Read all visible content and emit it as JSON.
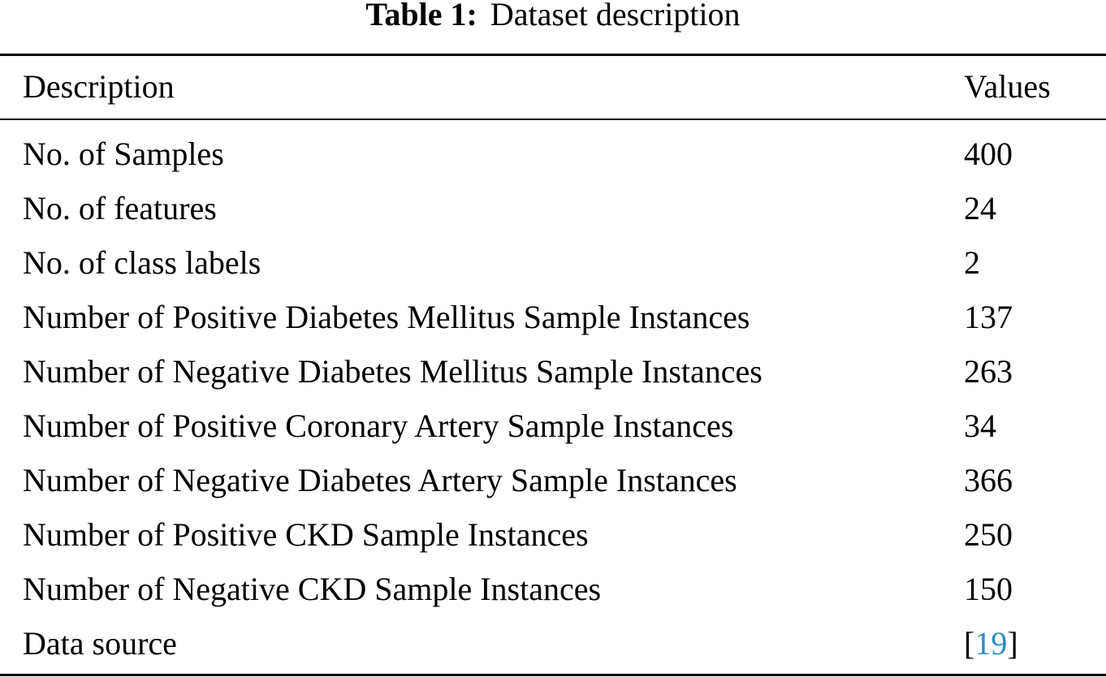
{
  "caption": {
    "label": "Table 1:",
    "title": "Dataset description"
  },
  "table": {
    "columns": [
      "Description",
      "Values"
    ],
    "rows": [
      {
        "description": "No. of Samples",
        "value": "400"
      },
      {
        "description": "No. of features",
        "value": "24"
      },
      {
        "description": "No. of class labels",
        "value": "2"
      },
      {
        "description": "Number of Positive Diabetes Mellitus Sample Instances",
        "value": "137"
      },
      {
        "description": "Number of Negative Diabetes Mellitus Sample Instances",
        "value": "263"
      },
      {
        "description": "Number of Positive Coronary Artery Sample Instances",
        "value": "34"
      },
      {
        "description": "Number of Negative Diabetes Artery Sample Instances",
        "value": "366"
      },
      {
        "description": "Number of Positive CKD Sample Instances",
        "value": "250"
      },
      {
        "description": "Number of Negative CKD Sample Instances",
        "value": "150"
      }
    ],
    "data_source_row": {
      "description": "Data source",
      "bracket_open": "[",
      "citation": "19",
      "bracket_close": "]"
    }
  },
  "colors": {
    "text": "#000000",
    "citation_link": "#2b8cbe"
  }
}
